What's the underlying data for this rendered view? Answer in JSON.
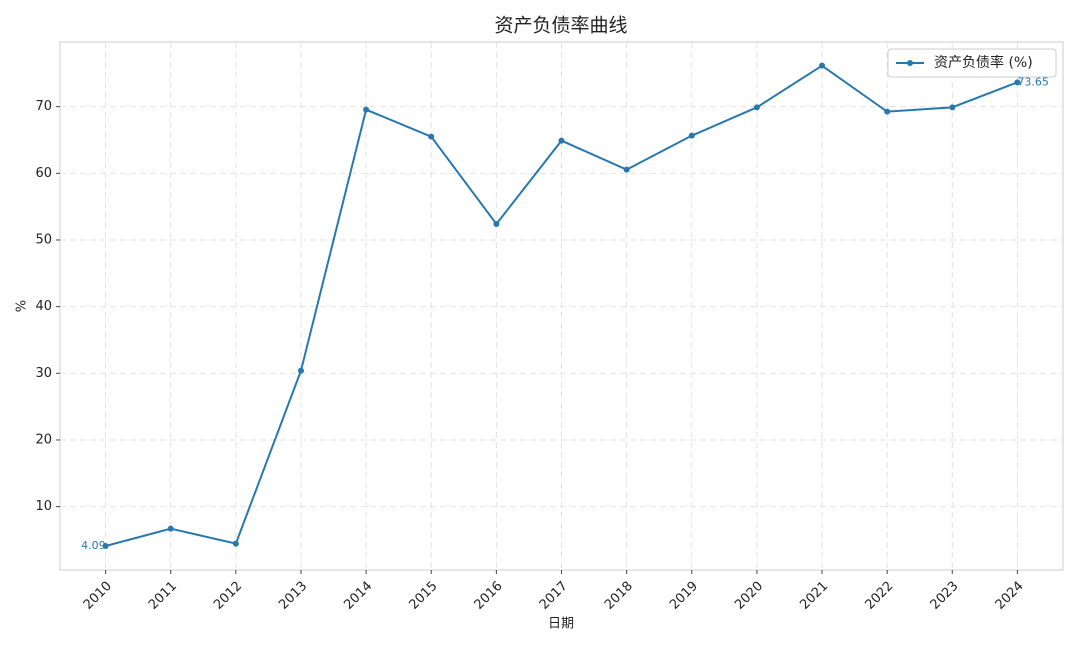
{
  "chart_data": {
    "type": "line",
    "title": "资产负债率曲线",
    "x_label": "日期",
    "y_label": "%",
    "categories": [
      "2010",
      "2011",
      "2012",
      "2013",
      "2014",
      "2015",
      "2016",
      "2017",
      "2018",
      "2019",
      "2020",
      "2021",
      "2022",
      "2023",
      "2024"
    ],
    "series": [
      {
        "name": "资产负债率 (%)",
        "color": "#2878b0",
        "values": [
          4.09,
          6.7,
          4.45,
          30.4,
          69.55,
          65.5,
          52.4,
          64.9,
          60.55,
          65.65,
          69.9,
          76.15,
          69.25,
          69.9,
          73.65
        ],
        "value_labels": [
          "4.09",
          null,
          null,
          null,
          null,
          null,
          null,
          null,
          null,
          null,
          null,
          null,
          null,
          null,
          "73.65"
        ]
      }
    ],
    "ylim": [
      0.49,
      79.7
    ],
    "yticks": [
      10,
      20,
      30,
      40,
      50,
      60,
      70
    ],
    "grid": true,
    "legend": "upper-right"
  }
}
